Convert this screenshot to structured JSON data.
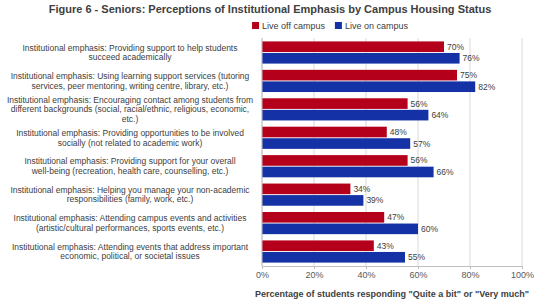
{
  "chart_data": {
    "type": "bar",
    "orientation": "horizontal",
    "title": "Figure 6 - Seniors: Perceptions of Institutional Emphasis by Campus Housing Status",
    "categories": [
      "Institutional emphasis: Providing support to help students succeed academically",
      "Institutional emphasis: Using learning support services (tutoring services, peer mentoring, writing centre, library, etc.)",
      "Institutional emphasis: Encouraging contact among students from different backgrounds (social, racial/ethnic, religious, economic, etc.)",
      "Institutional emphasis: Providing opportunities to be involved socially (not related to academic work)",
      "Institutional emphasis: Providing support for your overall well-being (recreation, health care, counselling, etc.)",
      "Institutional emphasis: Helping you manage your non-academic responsibilities (family, work, etc.)",
      "Institutional emphasis: Attending campus events and activities (artistic/cultural performances, sports events, etc.)",
      "Institutional emphasis: Attending events that address important economic, political, or societal issues"
    ],
    "series": [
      {
        "name": "Live off campus",
        "color": "#b5001c",
        "values": [
          70,
          75,
          56,
          48,
          56,
          34,
          47,
          43
        ],
        "value_labels": [
          "70%",
          "75%",
          "56%",
          "48%",
          "56%",
          "34%",
          "47%",
          "43%"
        ]
      },
      {
        "name": "Live on campus",
        "color": "#1432a6",
        "values": [
          76,
          82,
          64,
          57,
          66,
          39,
          60,
          55
        ],
        "value_labels": [
          "76%",
          "82%",
          "64%",
          "57%",
          "66%",
          "39%",
          "60%",
          "55%"
        ]
      }
    ],
    "xlabel": "Percentage of students responding \"Quite a bit\" or \"Very much\"",
    "xlim": [
      0,
      100
    ],
    "xticks": [
      {
        "value": 0,
        "label": "0%"
      },
      {
        "value": 20,
        "label": "20%"
      },
      {
        "value": 40,
        "label": "40%"
      },
      {
        "value": 60,
        "label": "60%"
      },
      {
        "value": 80,
        "label": "80%"
      },
      {
        "value": 100,
        "label": "100%"
      }
    ],
    "grid": true,
    "legend": "top",
    "data_labels": true
  }
}
